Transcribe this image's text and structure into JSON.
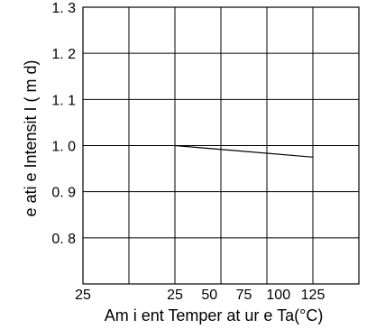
{
  "chart_data": {
    "type": "line",
    "xlabel": "Am i ent  Temper at ur e Ta(°C)",
    "ylabel": "e ati e Intensit  I    ( m d)",
    "x_tick_labels": [
      "25",
      "25",
      "50",
      "75",
      "100",
      "125"
    ],
    "y_tick_labels": [
      "1. 3",
      "1. 2",
      "1. 1",
      "1. 0",
      "0. 9",
      "0. 8"
    ],
    "ylim": [
      0.7,
      1.3
    ],
    "grid": true,
    "series": [
      {
        "x": [
          25,
          125
        ],
        "y": [
          1.0,
          0.975
        ]
      }
    ]
  }
}
